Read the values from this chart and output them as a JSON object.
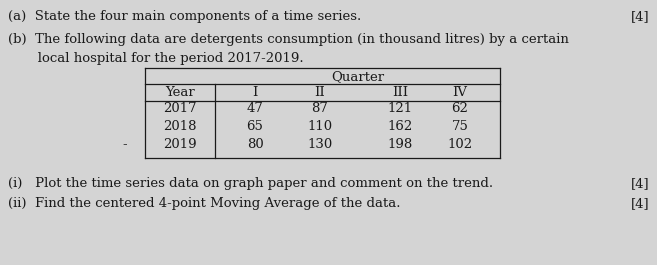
{
  "bg_color": "#d4d4d4",
  "text_color": "#1a1a1a",
  "part_a": "(a)  State the four main components of a time series.",
  "part_a_marks": "[4]",
  "part_b_line1": "(b)  The following data are detergents consumption (in thousand litres) by a certain",
  "part_b_line2": "       local hospital for the period 2017-2019.",
  "table_header_span": "Quarter",
  "col_headers": [
    "Year",
    "I",
    "II",
    "III",
    "IV"
  ],
  "rows": [
    [
      "2017",
      "47",
      "87",
      "121",
      "62"
    ],
    [
      "2018",
      "65",
      "110",
      "162",
      "75"
    ],
    [
      "2019",
      "80",
      "130",
      "198",
      "102"
    ]
  ],
  "dot_label": "-",
  "part_i": "(i)   Plot the time series data on graph paper and comment on the trend.",
  "part_i_marks": "[4]",
  "part_ii": "(ii)  Find the centered 4-point Moving Average of the data.",
  "part_ii_marks": "[4]",
  "fs_main": 9.5,
  "fs_table": 9.5
}
